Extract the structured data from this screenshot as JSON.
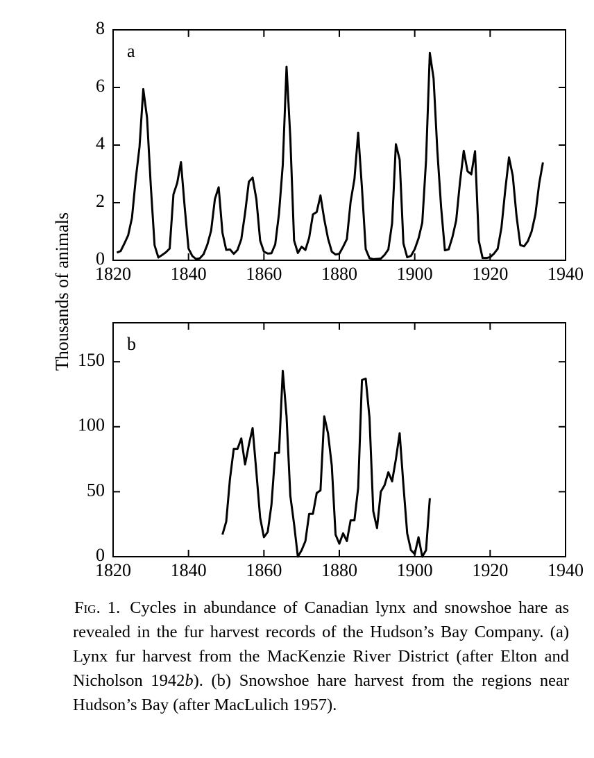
{
  "chart_data": [
    {
      "type": "line",
      "title": "a",
      "color": "#000000",
      "x": [
        1821,
        1822,
        1823,
        1824,
        1825,
        1826,
        1827,
        1828,
        1829,
        1830,
        1831,
        1832,
        1833,
        1834,
        1835,
        1836,
        1837,
        1838,
        1839,
        1840,
        1841,
        1842,
        1843,
        1844,
        1845,
        1846,
        1847,
        1848,
        1849,
        1850,
        1851,
        1852,
        1853,
        1854,
        1855,
        1856,
        1857,
        1858,
        1859,
        1860,
        1861,
        1862,
        1863,
        1864,
        1865,
        1866,
        1867,
        1868,
        1869,
        1870,
        1871,
        1872,
        1873,
        1874,
        1875,
        1876,
        1877,
        1878,
        1879,
        1880,
        1881,
        1882,
        1883,
        1884,
        1885,
        1886,
        1887,
        1888,
        1889,
        1890,
        1891,
        1892,
        1893,
        1894,
        1895,
        1896,
        1897,
        1898,
        1899,
        1900,
        1901,
        1902,
        1903,
        1904,
        1905,
        1906,
        1907,
        1908,
        1909,
        1910,
        1911,
        1912,
        1913,
        1914,
        1915,
        1916,
        1917,
        1918,
        1919,
        1920,
        1921,
        1922,
        1923,
        1924,
        1925,
        1926,
        1927,
        1928,
        1929,
        1930,
        1931,
        1932,
        1933,
        1934
      ],
      "values": [
        0.269,
        0.321,
        0.585,
        0.871,
        1.475,
        2.821,
        3.928,
        5.943,
        4.95,
        2.577,
        0.523,
        0.098,
        0.184,
        0.279,
        0.409,
        2.285,
        2.685,
        3.409,
        1.824,
        0.409,
        0.151,
        0.045,
        0.068,
        0.213,
        0.546,
        1.033,
        2.129,
        2.536,
        0.957,
        0.361,
        0.377,
        0.225,
        0.36,
        0.731,
        1.638,
        2.725,
        2.871,
        2.119,
        0.684,
        0.299,
        0.236,
        0.245,
        0.552,
        1.623,
        3.311,
        6.721,
        4.254,
        0.687,
        0.255,
        0.473,
        0.358,
        0.784,
        1.594,
        1.676,
        2.251,
        1.426,
        0.756,
        0.299,
        0.201,
        0.229,
        0.469,
        0.736,
        2.042,
        2.811,
        4.431,
        2.511,
        0.389,
        0.073,
        0.039,
        0.049,
        0.059,
        0.188,
        0.377,
        1.292,
        4.031,
        3.495,
        0.587,
        0.105,
        0.153,
        0.387,
        0.758,
        1.307,
        3.465,
        7.2,
        6.313,
        3.794,
        1.836,
        0.345,
        0.382,
        0.808,
        1.388,
        2.713,
        3.8,
        3.091,
        2.985,
        3.79,
        0.674,
        0.081,
        0.08,
        0.108,
        0.229,
        0.399,
        1.132,
        2.432,
        3.574,
        2.935,
        1.537,
        0.529,
        0.485,
        0.662,
        1.0,
        1.59,
        2.657,
        3.396
      ],
      "xlim": [
        1820,
        1940
      ],
      "xticks": [
        1820,
        1840,
        1860,
        1880,
        1900,
        1920,
        1940
      ],
      "ylim": [
        0,
        8
      ],
      "yticks": [
        0,
        2,
        4,
        6,
        8
      ]
    },
    {
      "type": "line",
      "title": "b",
      "color": "#000000",
      "x": [
        1849,
        1850,
        1851,
        1852,
        1853,
        1854,
        1855,
        1856,
        1857,
        1858,
        1859,
        1860,
        1861,
        1862,
        1863,
        1864,
        1865,
        1866,
        1867,
        1868,
        1869,
        1870,
        1871,
        1872,
        1873,
        1874,
        1875,
        1876,
        1877,
        1878,
        1879,
        1880,
        1881,
        1882,
        1883,
        1884,
        1885,
        1886,
        1887,
        1888,
        1889,
        1890,
        1891,
        1892,
        1893,
        1894,
        1895,
        1896,
        1897,
        1898,
        1899,
        1900,
        1901,
        1902,
        1903,
        1904
      ],
      "values": [
        17,
        27,
        60,
        83,
        83,
        91,
        71,
        86,
        99,
        65,
        30,
        15,
        19,
        40,
        80,
        80,
        143,
        108,
        47,
        25,
        0,
        5,
        12,
        33,
        33,
        49,
        51,
        108,
        95,
        70,
        17,
        10,
        18,
        12,
        28,
        28,
        53,
        136,
        137,
        107,
        35,
        22,
        50,
        55,
        65,
        58,
        75,
        95,
        55,
        18,
        5,
        2,
        15,
        0,
        5,
        45
      ],
      "xlim": [
        1820,
        1940
      ],
      "xticks": [
        1820,
        1840,
        1860,
        1880,
        1900,
        1920,
        1940
      ],
      "ylim": [
        0,
        180
      ],
      "yticks": [
        0,
        50,
        100,
        150
      ]
    }
  ],
  "shared_ylabel": "Thousands of animals",
  "caption": {
    "label": "Fig. 1.",
    "text_1": "Cycles in abundance of Canadian lynx and snowshoe hare as revealed in the fur harvest records of the Hudson’s Bay Company. (a) Lynx fur harvest from the MacKenzie River District (after Elton and Nicholson 1942",
    "italic_1": "b",
    "text_2": "). (b) Snowshoe hare harvest from the regions near Hudson’s Bay (after MacLulich 1957)."
  }
}
